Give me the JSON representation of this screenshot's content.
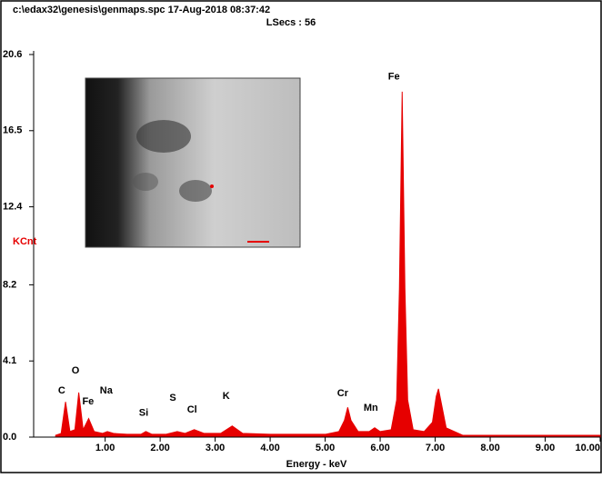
{
  "chart_data": {
    "type": "area",
    "title": "c:\\edax32\\genesis\\genmaps.spc  17-Aug-2018 08:37:42",
    "subtitle": "LSecs : 56",
    "x_label": "Energy - keV",
    "y_label": "KCnt",
    "xlim": [
      -0.3,
      10.0
    ],
    "ylim": [
      0,
      20.6
    ],
    "xticks": [
      {
        "value": 1,
        "label": "1.00"
      },
      {
        "value": 2,
        "label": "2.00"
      },
      {
        "value": 3,
        "label": "3.00"
      },
      {
        "value": 4,
        "label": "4.00"
      },
      {
        "value": 5,
        "label": "5.00"
      },
      {
        "value": 6,
        "label": "6.00"
      },
      {
        "value": 7,
        "label": "7.00"
      },
      {
        "value": 8,
        "label": "8.00"
      },
      {
        "value": 9,
        "label": "9.00"
      },
      {
        "value": 10,
        "label": "10.00"
      }
    ],
    "yticks": [
      {
        "value": 0,
        "label": "0.0"
      },
      4.1,
      8.2,
      12.4,
      16.5,
      20.6
    ],
    "x": [
      0.1,
      0.2,
      0.28,
      0.36,
      0.45,
      0.52,
      0.6,
      0.7,
      0.8,
      0.95,
      1.04,
      1.15,
      1.4,
      1.65,
      1.74,
      1.85,
      2.1,
      2.31,
      2.45,
      2.62,
      2.8,
      3.1,
      3.31,
      3.5,
      4.0,
      4.5,
      5.0,
      5.25,
      5.35,
      5.41,
      5.47,
      5.6,
      5.8,
      5.9,
      6.0,
      6.2,
      6.3,
      6.35,
      6.4,
      6.45,
      6.5,
      6.6,
      6.8,
      6.95,
      7.02,
      7.06,
      7.1,
      7.2,
      7.5,
      8.0,
      8.5,
      9.0,
      9.5,
      10.0
    ],
    "series": [
      {
        "color": "#e60000",
        "values": [
          0.1,
          0.2,
          1.9,
          0.3,
          0.4,
          2.4,
          0.4,
          1.0,
          0.3,
          0.2,
          0.3,
          0.2,
          0.15,
          0.15,
          0.3,
          0.15,
          0.15,
          0.3,
          0.2,
          0.4,
          0.2,
          0.2,
          0.6,
          0.2,
          0.15,
          0.15,
          0.15,
          0.3,
          0.9,
          1.6,
          0.9,
          0.3,
          0.3,
          0.5,
          0.3,
          0.4,
          2.0,
          8.0,
          18.6,
          8.0,
          2.0,
          0.4,
          0.3,
          0.8,
          2.2,
          2.6,
          2.0,
          0.5,
          0.1,
          0.1,
          0.1,
          0.1,
          0.1,
          0.1
        ]
      }
    ],
    "annotations": [
      {
        "text": "C",
        "x": 0.21,
        "y": 2.5
      },
      {
        "text": "O",
        "x": 0.46,
        "y": 3.57
      },
      {
        "text": "Fe",
        "x": 0.69,
        "y": 1.9
      },
      {
        "text": "Na",
        "x": 1.02,
        "y": 2.5
      },
      {
        "text": "Si",
        "x": 1.7,
        "y": 1.3
      },
      {
        "text": "S",
        "x": 2.23,
        "y": 2.1
      },
      {
        "text": "Cl",
        "x": 2.58,
        "y": 1.47
      },
      {
        "text": "K",
        "x": 3.2,
        "y": 2.2
      },
      {
        "text": "Cr",
        "x": 5.32,
        "y": 2.35
      },
      {
        "text": "Mn",
        "x": 5.83,
        "y": 1.57
      },
      {
        "text": "Fe",
        "x": 6.25,
        "y": 19.4
      }
    ]
  }
}
